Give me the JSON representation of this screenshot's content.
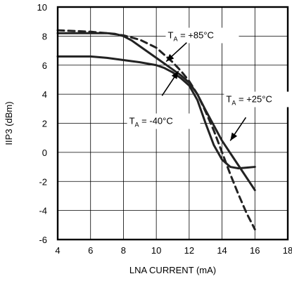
{
  "chart_data": {
    "type": "line",
    "xlabel": "LNA CURRENT (mA)",
    "ylabel": "IIP3 (dBm)",
    "xlim": [
      4,
      18
    ],
    "ylim": [
      -6,
      10
    ],
    "x_ticks": [
      "4",
      "6",
      "8",
      "10",
      "12",
      "14",
      "16",
      "18"
    ],
    "y_ticks": [
      "10",
      "8",
      "6",
      "4",
      "2",
      "0",
      "-2",
      "-4",
      "-6"
    ],
    "grid": true,
    "series": [
      {
        "name": "TA = -40°C",
        "label_main": "T",
        "label_sub": "A",
        "label_rest": " = -40°C",
        "style": "solid",
        "x": [
          4,
          5,
          6,
          7,
          8,
          9,
          10,
          10.5,
          11,
          11.5,
          12,
          12.5,
          13,
          13.5,
          14,
          14.5,
          15,
          15.5,
          16
        ],
        "y": [
          6.6,
          6.6,
          6.6,
          6.5,
          6.35,
          6.2,
          6.0,
          5.8,
          5.5,
          5.1,
          4.6,
          3.6,
          2.0,
          0.5,
          -0.5,
          -1.0,
          -1.1,
          -1.05,
          -1.0
        ]
      },
      {
        "name": "TA = +25°C",
        "label_main": "T",
        "label_sub": "A",
        "label_rest": " = +25°C",
        "style": "solid",
        "x": [
          4,
          5,
          6,
          7,
          7.5,
          8,
          8.5,
          9,
          10,
          11,
          11.5,
          12,
          12.5,
          13,
          14,
          15,
          16
        ],
        "y": [
          8.2,
          8.2,
          8.2,
          8.2,
          8.15,
          8.0,
          7.7,
          7.3,
          6.5,
          5.7,
          5.3,
          4.8,
          4.0,
          2.9,
          0.8,
          -0.9,
          -2.6
        ]
      },
      {
        "name": "TA = +85°C",
        "label_main": "T",
        "label_sub": "A",
        "label_rest": " = +85°C",
        "style": "dashed",
        "x": [
          4,
          5,
          6,
          7,
          8,
          9,
          10,
          11,
          11.5,
          12,
          12.5,
          13,
          13.5,
          14,
          14.5,
          15,
          15.5,
          16
        ],
        "y": [
          8.4,
          8.35,
          8.3,
          8.2,
          8.05,
          7.75,
          7.2,
          6.2,
          5.6,
          4.9,
          4.0,
          2.8,
          1.5,
          0.0,
          -1.5,
          -2.9,
          -4.2,
          -5.3
        ]
      }
    ]
  }
}
